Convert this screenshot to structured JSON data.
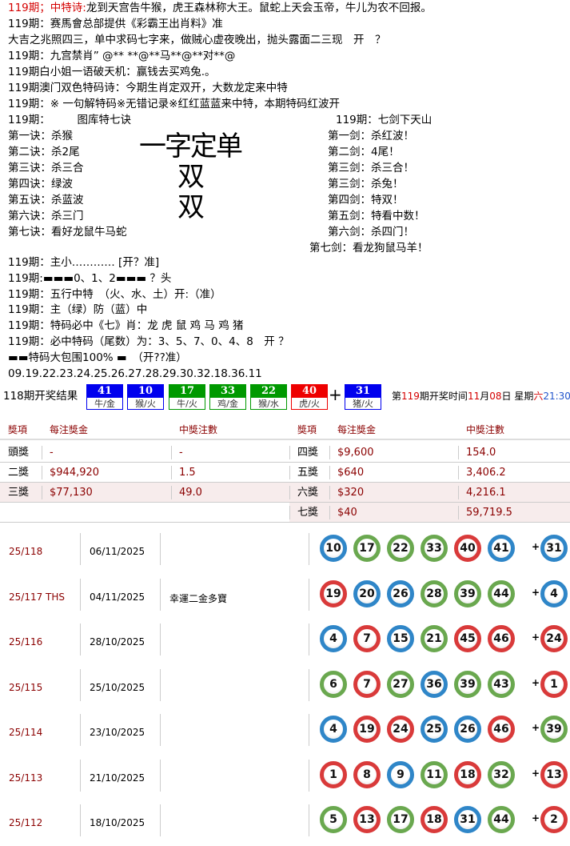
{
  "lines": [
    {
      "prefix": "119期；中特诗:",
      "text": "龙到天宫告牛猴，虎王森林称大王。鼠蛇上天会玉帝，牛儿为农不回报。"
    },
    {
      "text": "119期：赛馬會总部提供《彩霸王出肖料》准"
    },
    {
      "text": "大吉之兆照四三，单中求码七字来，做贼心虚夜晚出，抛头露面二三现　开　？"
    },
    {
      "text": "119期：九宫禁肖” @** **@**马**@**对**@"
    },
    {
      "text": "119期白小姐一语破天机：赢钱去买鸡兔.。"
    },
    {
      "text": "119期澳门双色特码诗：今期生肖定双开，大数龙定来中特"
    },
    {
      "text": "119期：※ 一句解特码※无错记录※红红蓝蓝来中特，本期特码红波开"
    }
  ],
  "left_block": {
    "title": "119期：　　　图库特七诀",
    "items": [
      "第一诀：杀猴",
      "第二诀：杀2尾",
      "第三诀：杀三合",
      "第四诀：绿波",
      "第五诀：杀蓝波",
      "第六诀：杀三门",
      "第七诀：看好龙鼠牛马蛇"
    ]
  },
  "center_big": {
    "line1": "一字定单双",
    "line2": "双"
  },
  "right_block": {
    "title": "119期：七剑下天山",
    "items": [
      "第一剑：杀红波！",
      "第二剑：4尾！",
      "第三剑：杀三合！",
      "第三剑：杀兔！",
      "第四剑：特双！",
      "第五剑：特看中数！",
      "第六剑：杀四门！",
      "第七剑：看龙狗鼠马羊！"
    ]
  },
  "lines2": [
    "119期：主小………… [开？准]",
    "119期:▬▬▬0、1、2▬▬▬ ？头",
    "119期：五行中特　（火、水、土）开:（准）",
    "119期：主（绿）防（蓝）中",
    "119期：特码必中《七》肖：龙 虎 鼠 鸡 马 鸡 猪",
    "119期：必中特码（尾数）为：3、5、7、0、4、8　开 ？",
    "▬▬特码大包围100% ▬　（开??准）",
    "09.19.22.23.24.25.26.27.28.29.30.32.18.36.11"
  ],
  "draw": {
    "label": "118期开奖结果",
    "balls": [
      {
        "n": "41",
        "z": "牛/金",
        "color": "#0000ee"
      },
      {
        "n": "10",
        "z": "猴/火",
        "color": "#0000ee"
      },
      {
        "n": "17",
        "z": "牛/火",
        "color": "#009900"
      },
      {
        "n": "33",
        "z": "鸡/金",
        "color": "#009900"
      },
      {
        "n": "22",
        "z": "猴/水",
        "color": "#009900"
      },
      {
        "n": "40",
        "z": "虎/火",
        "color": "#ee0000"
      }
    ],
    "plus": "+",
    "special": {
      "n": "31",
      "z": "猪/火",
      "color": "#0000ee"
    },
    "next": {
      "a": "第",
      "issue": "119",
      "b": "期开奖时间",
      "month": "11",
      "c": "月",
      "day": "08",
      "d": "日 星期",
      "wd": "六",
      "time": "21:30"
    }
  },
  "prize": {
    "headers": [
      "獎項",
      "每注獎金",
      "中獎注數",
      "獎項",
      "每注獎金",
      "中獎注數"
    ],
    "rows": [
      [
        "頭獎",
        "-",
        "-",
        "四獎",
        "$9,600",
        "154.0"
      ],
      [
        "二獎",
        "$944,920",
        "1.5",
        "五獎",
        "$640",
        "3,406.2"
      ],
      [
        "三獎",
        "$77,130",
        "49.0",
        "六獎",
        "$320",
        "4,216.1"
      ],
      [
        "",
        "",
        "",
        "七獎",
        "$40",
        "59,719.5"
      ]
    ]
  },
  "results": [
    {
      "issue": "25/118",
      "date": "06/11/2025",
      "note": "",
      "balls": [
        [
          "10",
          "b"
        ],
        [
          "17",
          "g"
        ],
        [
          "22",
          "g"
        ],
        [
          "33",
          "g"
        ],
        [
          "40",
          "r"
        ],
        [
          "41",
          "b"
        ]
      ],
      "sp": [
        "31",
        "b"
      ]
    },
    {
      "issue": "25/117 THS",
      "date": "04/11/2025",
      "note": "幸運二金多寶",
      "balls": [
        [
          "19",
          "r"
        ],
        [
          "20",
          "b"
        ],
        [
          "26",
          "b"
        ],
        [
          "28",
          "g"
        ],
        [
          "39",
          "g"
        ],
        [
          "44",
          "g"
        ]
      ],
      "sp": [
        "4",
        "b"
      ]
    },
    {
      "issue": "25/116",
      "date": "28/10/2025",
      "note": "",
      "balls": [
        [
          "4",
          "b"
        ],
        [
          "7",
          "r"
        ],
        [
          "15",
          "b"
        ],
        [
          "21",
          "g"
        ],
        [
          "45",
          "r"
        ],
        [
          "46",
          "r"
        ]
      ],
      "sp": [
        "24",
        "r"
      ]
    },
    {
      "issue": "25/115",
      "date": "25/10/2025",
      "note": "",
      "balls": [
        [
          "6",
          "g"
        ],
        [
          "7",
          "r"
        ],
        [
          "27",
          "g"
        ],
        [
          "36",
          "b"
        ],
        [
          "39",
          "g"
        ],
        [
          "43",
          "g"
        ]
      ],
      "sp": [
        "1",
        "r"
      ]
    },
    {
      "issue": "25/114",
      "date": "23/10/2025",
      "note": "",
      "balls": [
        [
          "4",
          "b"
        ],
        [
          "19",
          "r"
        ],
        [
          "24",
          "r"
        ],
        [
          "25",
          "b"
        ],
        [
          "26",
          "b"
        ],
        [
          "46",
          "r"
        ]
      ],
      "sp": [
        "39",
        "g"
      ]
    },
    {
      "issue": "25/113",
      "date": "21/10/2025",
      "note": "",
      "balls": [
        [
          "1",
          "r"
        ],
        [
          "8",
          "r"
        ],
        [
          "9",
          "b"
        ],
        [
          "11",
          "g"
        ],
        [
          "18",
          "r"
        ],
        [
          "32",
          "g"
        ]
      ],
      "sp": [
        "13",
        "r"
      ]
    },
    {
      "issue": "25/112",
      "date": "18/10/2025",
      "note": "",
      "balls": [
        [
          "5",
          "g"
        ],
        [
          "13",
          "r"
        ],
        [
          "17",
          "g"
        ],
        [
          "18",
          "r"
        ],
        [
          "31",
          "b"
        ],
        [
          "44",
          "g"
        ]
      ],
      "sp": [
        "2",
        "r"
      ]
    }
  ],
  "plus": "+",
  "ball_colors": {
    "r": "#d93a3a",
    "g": "#6aa84f",
    "b": "#2f86c8"
  }
}
